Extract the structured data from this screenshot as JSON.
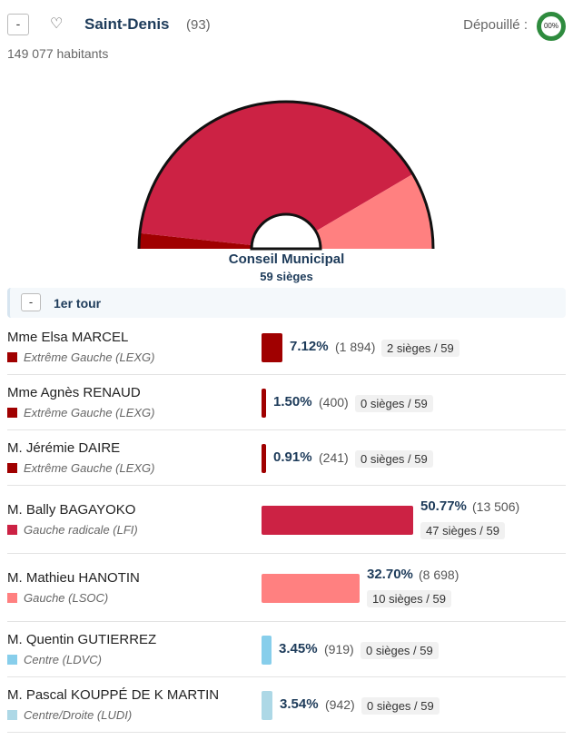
{
  "header": {
    "collapse_label": "-",
    "heart_icon": "heart-outline-icon",
    "heart_glyph": "♡",
    "city": "Saint-Denis",
    "dept": "(93)",
    "depouille_label": "Dépouillé :",
    "depouille_value": "00%",
    "population": "149 077 habitants"
  },
  "council": {
    "title": "Conseil Municipal",
    "seats_label": "59 sièges",
    "total_seats": 59
  },
  "tour": {
    "collapse_label": "-",
    "label": "1er tour"
  },
  "results": [
    {
      "name": "Mme Elsa MARCEL",
      "party": "Extrême Gauche (LEXG)",
      "color": "#a00000",
      "pct": "7.12%",
      "pct_value": 7.12,
      "votes": "(1 894)",
      "seats": "2 sièges / 59",
      "seat_count": 2
    },
    {
      "name": "Mme Agnès RENAUD",
      "party": "Extrême Gauche (LEXG)",
      "color": "#a00000",
      "pct": "1.50%",
      "pct_value": 1.5,
      "votes": "(400)",
      "seats": "0 sièges / 59",
      "seat_count": 0
    },
    {
      "name": "M. Jérémie DAIRE",
      "party": "Extrême Gauche (LEXG)",
      "color": "#a00000",
      "pct": "0.91%",
      "pct_value": 0.91,
      "votes": "(241)",
      "seats": "0 sièges / 59",
      "seat_count": 0
    },
    {
      "name": "M. Bally BAGAYOKO",
      "party": "Gauche radicale (LFI)",
      "color": "#cc2244",
      "pct": "50.77%",
      "pct_value": 50.77,
      "votes": "(13 506)",
      "seats": "47 sièges / 59",
      "seat_count": 47
    },
    {
      "name": "M. Mathieu HANOTIN",
      "party": "Gauche (LSOC)",
      "color": "#ff8080",
      "pct": "32.70%",
      "pct_value": 32.7,
      "votes": "(8 698)",
      "seats": "10 sièges / 59",
      "seat_count": 10
    },
    {
      "name": "M. Quentin GUTIERREZ",
      "party": "Centre (LDVC)",
      "color": "#87ceeb",
      "pct": "3.45%",
      "pct_value": 3.45,
      "votes": "(919)",
      "seats": "0 sièges / 59",
      "seat_count": 0
    },
    {
      "name": "M. Pascal KOUPPÉ DE K MARTIN",
      "party": "Centre/Droite (LUDI)",
      "color": "#add8e6",
      "pct": "3.54%",
      "pct_value": 3.54,
      "votes": "(942)",
      "seats": "0 sièges / 59",
      "seat_count": 0
    }
  ]
}
